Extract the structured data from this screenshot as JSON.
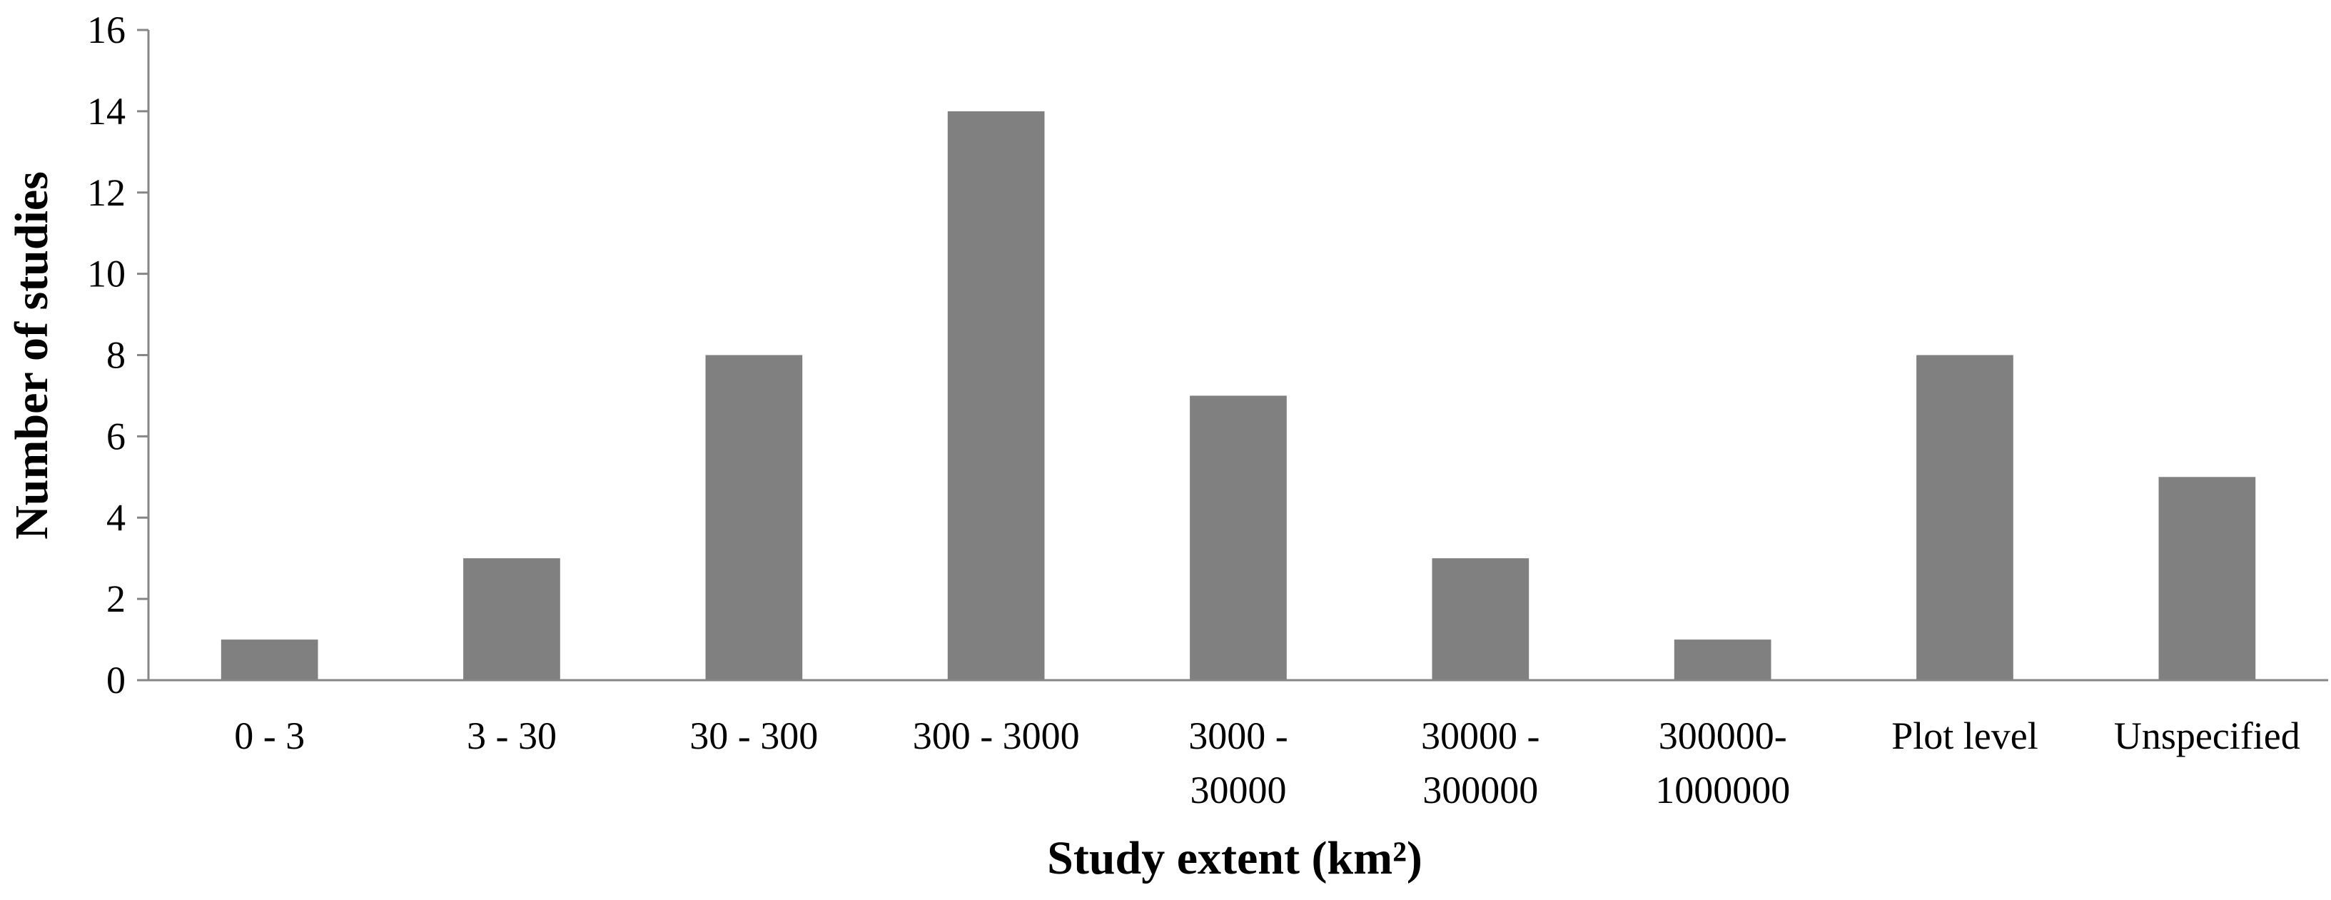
{
  "chart_data": {
    "type": "bar",
    "categories": [
      [
        "0 - 3"
      ],
      [
        "3 - 30"
      ],
      [
        "30 - 300"
      ],
      [
        "300 - 3000"
      ],
      [
        "3000 -",
        "30000"
      ],
      [
        "30000 -",
        "300000"
      ],
      [
        "300000-",
        "1000000"
      ],
      [
        "Plot level"
      ],
      [
        "Unspecified"
      ]
    ],
    "values": [
      1,
      3,
      8,
      14,
      7,
      3,
      1,
      8,
      5
    ],
    "xlabel": "Study extent (km²)",
    "ylabel": "Number of studies",
    "ylim": [
      0,
      16
    ],
    "yticks": [
      0,
      2,
      4,
      6,
      8,
      10,
      12,
      14,
      16
    ],
    "grid": false,
    "legend": "none",
    "bar_color": "#808080",
    "axis_color": "#868686"
  }
}
